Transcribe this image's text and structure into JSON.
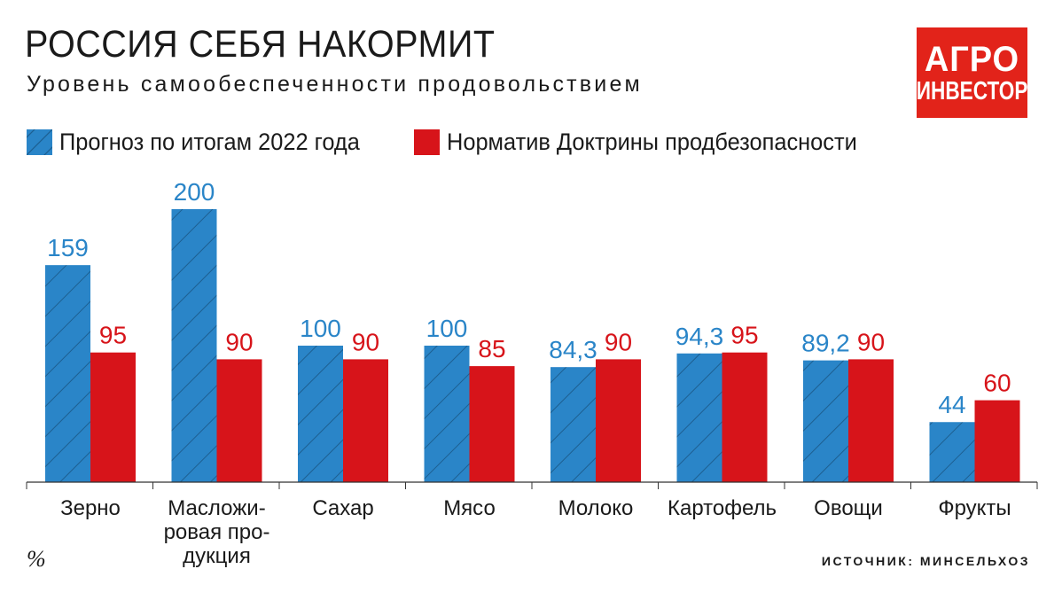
{
  "header": {
    "title": "РОССИЯ СЕБЯ НАКОРМИТ",
    "subtitle": "Уровень самообеспеченности продовольствием"
  },
  "logo": {
    "line1": "АГРО",
    "line2": "ИНВЕСТОР",
    "color": "#e2231a"
  },
  "footer": {
    "source": "ИСТОЧНИК: МИНСЕЛЬХОЗ",
    "unit": "%"
  },
  "chart_data": {
    "type": "bar",
    "title": "РОССИЯ СЕБЯ НАКОРМИТ",
    "subtitle": "Уровень самообеспеченности продовольствием",
    "categories": [
      [
        "Зерно"
      ],
      [
        "Масложи-",
        "ровая про-",
        "дукция"
      ],
      [
        "Сахар"
      ],
      [
        "Мясо"
      ],
      [
        "Молоко"
      ],
      [
        "Картофель"
      ],
      [
        "Овощи"
      ],
      [
        "Фрукты"
      ]
    ],
    "series": [
      {
        "name": "Прогноз по итогам 2022 года",
        "values": [
          159,
          200,
          100,
          100,
          84.3,
          94.3,
          89.2,
          44
        ],
        "labels": [
          "159",
          "200",
          "100",
          "100",
          "84,3",
          "94,3",
          "89,2",
          "44"
        ],
        "color": "#2a85c8",
        "label_color": "#2a85c8",
        "pattern": "diagonal-hatch"
      },
      {
        "name": "Норматив Доктрины продбезопасности",
        "values": [
          95,
          90,
          90,
          85,
          90,
          95,
          90,
          60
        ],
        "labels": [
          "95",
          "90",
          "90",
          "85",
          "90",
          "95",
          "90",
          "60"
        ],
        "color": "#d7141a",
        "label_color": "#d7141a"
      }
    ],
    "ylim": [
      0,
      200
    ],
    "grid": false,
    "legend_placement": "top-left"
  }
}
